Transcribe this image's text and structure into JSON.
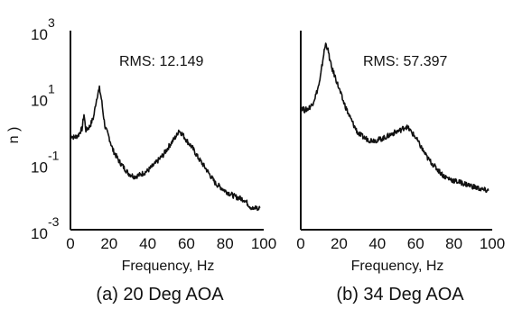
{
  "chart_data": [
    {
      "type": "line",
      "caption": "(a) 20 Deg AOA",
      "annotation": "RMS: 12.149",
      "xlabel": "Frequency, Hz",
      "ylabel": "n )",
      "xlim": [
        0,
        100
      ],
      "ylim": [
        0.001,
        1000
      ],
      "yscale": "log",
      "x_ticks": [
        "0",
        "20",
        "40",
        "60",
        "80",
        "100"
      ],
      "y_ticks": [
        {
          "base": "10",
          "exp": "3"
        },
        {
          "base": "10",
          "exp": "1"
        },
        {
          "base": "10",
          "exp": "-1"
        },
        {
          "base": "10",
          "exp": "-3"
        }
      ],
      "grid": false,
      "series": [
        {
          "x": [
            0,
            2,
            4,
            5,
            6,
            7,
            8,
            10,
            12,
            13,
            14,
            15,
            16,
            17,
            18,
            20,
            22,
            25,
            28,
            30,
            33,
            36,
            40,
            44,
            48,
            52,
            55,
            56,
            58,
            60,
            63,
            66,
            70,
            75,
            80,
            85,
            90,
            93,
            95,
            96,
            97,
            98
          ],
          "y": [
            0.7,
            0.6,
            0.7,
            0.9,
            1.1,
            3.0,
            1.0,
            1.3,
            2.5,
            6.0,
            12.0,
            18.0,
            9.0,
            3.0,
            1.2,
            0.6,
            0.25,
            0.12,
            0.07,
            0.05,
            0.04,
            0.045,
            0.06,
            0.1,
            0.18,
            0.4,
            0.7,
            1.0,
            0.75,
            0.5,
            0.3,
            0.15,
            0.07,
            0.025,
            0.015,
            0.01,
            0.008,
            0.005,
            0.004,
            0.005,
            0.004,
            0.0045
          ]
        }
      ]
    },
    {
      "type": "line",
      "caption": "(b) 34 Deg AOA",
      "annotation": "RMS: 57.397",
      "xlabel": "Frequency, Hz",
      "xlim": [
        0,
        100
      ],
      "ylim": [
        0.001,
        1000
      ],
      "yscale": "log",
      "x_ticks": [
        "0",
        "20",
        "40",
        "60",
        "80",
        "100"
      ],
      "grid": false,
      "series": [
        {
          "x": [
            0,
            2,
            4,
            6,
            8,
            10,
            11,
            12,
            13,
            14,
            15,
            16,
            18,
            20,
            22,
            25,
            28,
            30,
            33,
            36,
            40,
            44,
            48,
            52,
            55,
            57,
            60,
            63,
            66,
            70,
            75,
            80,
            85,
            90,
            95,
            98
          ],
          "y": [
            5.0,
            4.0,
            4.5,
            6.0,
            12.0,
            30.0,
            80.0,
            200.0,
            400.0,
            300.0,
            150.0,
            80.0,
            40.0,
            18.0,
            8.0,
            3.0,
            1.3,
            0.8,
            0.6,
            0.5,
            0.5,
            0.6,
            0.8,
            1.0,
            1.3,
            1.0,
            0.6,
            0.3,
            0.15,
            0.08,
            0.04,
            0.03,
            0.025,
            0.02,
            0.016,
            0.015
          ]
        }
      ]
    }
  ]
}
